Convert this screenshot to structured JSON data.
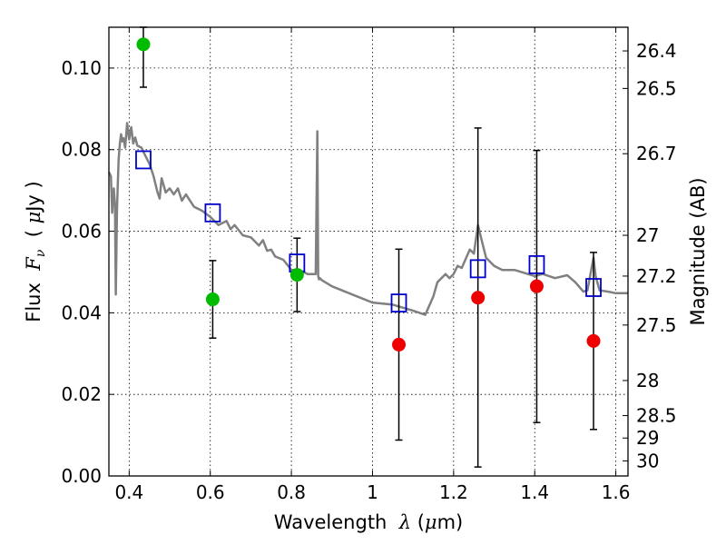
{
  "chart_data": {
    "type": "scatter",
    "xlabel_parts": {
      "prefix": "Wavelength  ",
      "symbol": "λ",
      "open": " (",
      "unit_symbol": "μ",
      "unit": "m)"
    },
    "ylabel_parts": {
      "prefix": "Flux  ",
      "symbol": "F",
      "sub": "ν",
      "open": "  ( ",
      "unit_symbol": "μ",
      "unit": "Jy )"
    },
    "y2label": "Magnitude (AB)",
    "xlim": [
      0.35,
      1.63
    ],
    "ylim": [
      0.0,
      0.11
    ],
    "grid": true,
    "x_ticks": [
      0.4,
      0.6,
      0.8,
      1.0,
      1.2,
      1.4,
      1.6
    ],
    "x_tick_labels": [
      "0.4",
      "0.6",
      "0.8",
      "1",
      "1.2",
      "1.4",
      "1.6"
    ],
    "y_ticks": [
      0.0,
      0.02,
      0.04,
      0.06,
      0.08,
      0.1
    ],
    "y_tick_labels": [
      "0.00",
      "0.02",
      "0.04",
      "0.06",
      "0.08",
      "0.10"
    ],
    "y2_ticks": [
      {
        "label": "26.4",
        "flux": 0.1042
      },
      {
        "label": "26.5",
        "flux": 0.095
      },
      {
        "label": "26.7",
        "flux": 0.079
      },
      {
        "label": "27",
        "flux": 0.059
      },
      {
        "label": "27.2",
        "flux": 0.049
      },
      {
        "label": "27.5",
        "flux": 0.037
      },
      {
        "label": "28",
        "flux": 0.0234
      },
      {
        "label": "28.5",
        "flux": 0.0148
      },
      {
        "label": "29",
        "flux": 0.0093
      },
      {
        "label": "30",
        "flux": 0.0037
      }
    ],
    "series": [
      {
        "marker": "square",
        "color": "#0000cc",
        "points": [
          {
            "x": 0.435,
            "y": 0.0775
          },
          {
            "x": 0.606,
            "y": 0.0645
          },
          {
            "x": 0.814,
            "y": 0.0522
          },
          {
            "x": 1.065,
            "y": 0.0424
          },
          {
            "x": 1.26,
            "y": 0.0508
          },
          {
            "x": 1.405,
            "y": 0.0518
          },
          {
            "x": 1.545,
            "y": 0.0462
          }
        ]
      },
      {
        "marker": "circle",
        "color": "#00bb00",
        "points": [
          {
            "x": 0.435,
            "y": 0.1058,
            "err_lo": 0.0953,
            "err_hi": 0.11
          },
          {
            "x": 0.606,
            "y": 0.0433,
            "err_lo": 0.0338,
            "err_hi": 0.0528
          },
          {
            "x": 0.814,
            "y": 0.0493,
            "err_lo": 0.0403,
            "err_hi": 0.0583
          }
        ]
      },
      {
        "marker": "circle",
        "color": "#ee0000",
        "points": [
          {
            "x": 1.065,
            "y": 0.0322,
            "err_lo": 0.0088,
            "err_hi": 0.0556
          },
          {
            "x": 1.26,
            "y": 0.0437,
            "err_lo": 0.0022,
            "err_hi": 0.0853
          },
          {
            "x": 1.405,
            "y": 0.0465,
            "err_lo": 0.0131,
            "err_hi": 0.0798
          },
          {
            "x": 1.545,
            "y": 0.0331,
            "err_lo": 0.0114,
            "err_hi": 0.0548
          }
        ]
      }
    ],
    "template_spectrum": {
      "color": "#808080",
      "x": [
        0.35,
        0.355,
        0.358,
        0.362,
        0.365,
        0.367,
        0.37,
        0.372,
        0.374,
        0.377,
        0.38,
        0.383,
        0.386,
        0.39,
        0.395,
        0.4,
        0.405,
        0.41,
        0.415,
        0.42,
        0.43,
        0.44,
        0.45,
        0.46,
        0.47,
        0.475,
        0.48,
        0.49,
        0.5,
        0.51,
        0.52,
        0.53,
        0.54,
        0.55,
        0.56,
        0.58,
        0.6,
        0.62,
        0.64,
        0.65,
        0.66,
        0.68,
        0.7,
        0.72,
        0.73,
        0.74,
        0.75,
        0.76,
        0.78,
        0.8,
        0.82,
        0.84,
        0.86,
        0.864,
        0.866,
        0.868,
        0.87,
        0.875,
        0.9,
        0.95,
        1.0,
        1.05,
        1.1,
        1.13,
        1.15,
        1.16,
        1.18,
        1.19,
        1.2,
        1.21,
        1.22,
        1.24,
        1.25,
        1.26,
        1.27,
        1.28,
        1.3,
        1.32,
        1.35,
        1.4,
        1.42,
        1.45,
        1.48,
        1.5,
        1.52,
        1.53,
        1.545,
        1.55,
        1.56,
        1.58,
        1.6,
        1.63
      ],
      "y": [
        0.0745,
        0.0735,
        0.0645,
        0.0705,
        0.0665,
        0.0445,
        0.065,
        0.0715,
        0.0775,
        0.0815,
        0.0838,
        0.082,
        0.0828,
        0.0805,
        0.0865,
        0.0825,
        0.0855,
        0.0815,
        0.083,
        0.081,
        0.0805,
        0.0785,
        0.0765,
        0.0735,
        0.0695,
        0.068,
        0.073,
        0.0695,
        0.0705,
        0.069,
        0.0705,
        0.0675,
        0.069,
        0.0675,
        0.066,
        0.065,
        0.0635,
        0.0615,
        0.0625,
        0.0605,
        0.0615,
        0.059,
        0.0585,
        0.0565,
        0.0578,
        0.0552,
        0.0555,
        0.0538,
        0.053,
        0.0505,
        0.0505,
        0.0495,
        0.0495,
        0.0845,
        0.049,
        0.0482,
        0.0485,
        0.048,
        0.0465,
        0.0445,
        0.0425,
        0.042,
        0.0405,
        0.0395,
        0.044,
        0.0475,
        0.0495,
        0.0485,
        0.0495,
        0.0515,
        0.051,
        0.0555,
        0.0545,
        0.0615,
        0.0575,
        0.0535,
        0.0515,
        0.0505,
        0.0505,
        0.049,
        0.0495,
        0.0485,
        0.0492,
        0.0475,
        0.0452,
        0.0455,
        0.0535,
        0.049,
        0.0455,
        0.0452,
        0.0448,
        0.0448
      ]
    }
  }
}
